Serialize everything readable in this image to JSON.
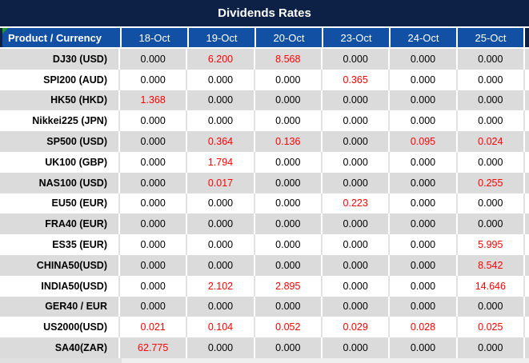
{
  "title": "Dividends Rates",
  "header": {
    "product_label": "Product / Currency",
    "dates": [
      "18-Oct",
      "19-Oct",
      "20-Oct",
      "23-Oct",
      "24-Oct",
      "25-Oct"
    ]
  },
  "rows": [
    {
      "product": "DJ30 (USD)",
      "values": [
        "0.000",
        "6.200",
        "8.568",
        "0.000",
        "0.000",
        "0.000"
      ],
      "red": [
        false,
        true,
        true,
        false,
        false,
        false
      ]
    },
    {
      "product": "SPI200 (AUD)",
      "values": [
        "0.000",
        "0.000",
        "0.000",
        "0.365",
        "0.000",
        "0.000"
      ],
      "red": [
        false,
        false,
        false,
        true,
        false,
        false
      ]
    },
    {
      "product": "HK50 (HKD)",
      "values": [
        "1.368",
        "0.000",
        "0.000",
        "0.000",
        "0.000",
        "0.000"
      ],
      "red": [
        true,
        false,
        false,
        false,
        false,
        false
      ]
    },
    {
      "product": "Nikkei225 (JPN)",
      "values": [
        "0.000",
        "0.000",
        "0.000",
        "0.000",
        "0.000",
        "0.000"
      ],
      "red": [
        false,
        false,
        false,
        false,
        false,
        false
      ]
    },
    {
      "product": "SP500 (USD)",
      "values": [
        "0.000",
        "0.364",
        "0.136",
        "0.000",
        "0.095",
        "0.024"
      ],
      "red": [
        false,
        true,
        true,
        false,
        true,
        true
      ]
    },
    {
      "product": "UK100 (GBP)",
      "values": [
        "0.000",
        "1.794",
        "0.000",
        "0.000",
        "0.000",
        "0.000"
      ],
      "red": [
        false,
        true,
        false,
        false,
        false,
        false
      ]
    },
    {
      "product": "NAS100 (USD)",
      "values": [
        "0.000",
        "0.017",
        "0.000",
        "0.000",
        "0.000",
        "0.255"
      ],
      "red": [
        false,
        true,
        false,
        false,
        false,
        true
      ]
    },
    {
      "product": "EU50 (EUR)",
      "values": [
        "0.000",
        "0.000",
        "0.000",
        "0.223",
        "0.000",
        "0.000"
      ],
      "red": [
        false,
        false,
        false,
        true,
        false,
        false
      ]
    },
    {
      "product": "FRA40 (EUR)",
      "values": [
        "0.000",
        "0.000",
        "0.000",
        "0.000",
        "0.000",
        "0.000"
      ],
      "red": [
        false,
        false,
        false,
        false,
        false,
        false
      ]
    },
    {
      "product": "ES35 (EUR)",
      "values": [
        "0.000",
        "0.000",
        "0.000",
        "0.000",
        "0.000",
        "5.995"
      ],
      "red": [
        false,
        false,
        false,
        false,
        false,
        true
      ]
    },
    {
      "product": "CHINA50(USD)",
      "values": [
        "0.000",
        "0.000",
        "0.000",
        "0.000",
        "0.000",
        "8.542"
      ],
      "red": [
        false,
        false,
        false,
        false,
        false,
        true
      ]
    },
    {
      "product": "INDIA50(USD)",
      "values": [
        "0.000",
        "2.102",
        "2.895",
        "0.000",
        "0.000",
        "14.646"
      ],
      "red": [
        false,
        true,
        true,
        false,
        false,
        true
      ]
    },
    {
      "product": "GER40 / EUR",
      "values": [
        "0.000",
        "0.000",
        "0.000",
        "0.000",
        "0.000",
        "0.000"
      ],
      "red": [
        false,
        false,
        false,
        false,
        false,
        false
      ]
    },
    {
      "product": "US2000(USD)",
      "values": [
        "0.021",
        "0.104",
        "0.052",
        "0.029",
        "0.028",
        "0.025"
      ],
      "red": [
        true,
        true,
        true,
        true,
        true,
        true
      ]
    },
    {
      "product": "SA40(ZAR)",
      "values": [
        "62.775",
        "0.000",
        "0.000",
        "0.000",
        "0.000",
        "0.000"
      ],
      "red": [
        true,
        false,
        false,
        false,
        false,
        false
      ]
    }
  ],
  "colors": {
    "navy": "#0C2145",
    "header_blue": "#1150A3",
    "row_gray": "#DBDBDB",
    "red": "#FE0000",
    "green_marker": "#1FA11F"
  }
}
